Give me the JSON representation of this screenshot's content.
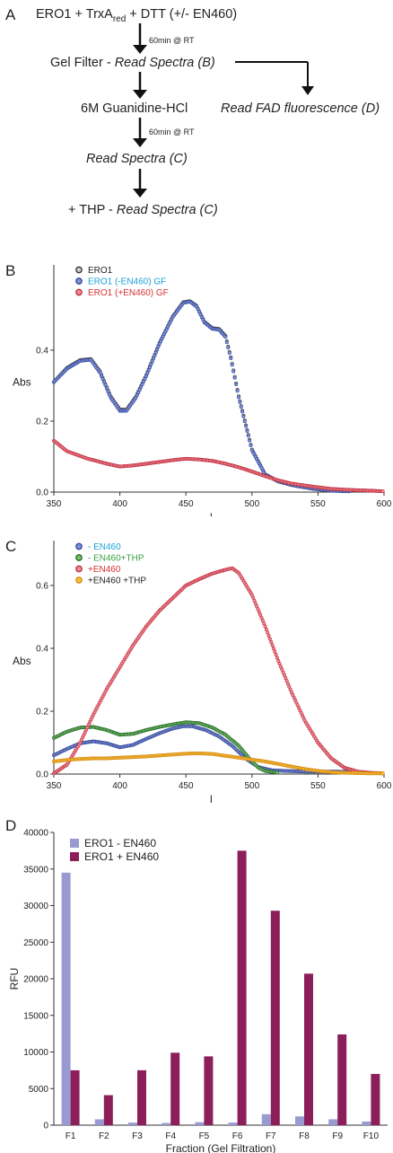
{
  "scheme": {
    "panel_label": "A",
    "step1": {
      "pre": "ERO1 + TrxA",
      "subscript": "red",
      "post": " + DTT (+/- EN460)"
    },
    "incubation1": "60min @ RT",
    "step2": {
      "plain": "Gel Filter - ",
      "italic": "Read Spectra (B)"
    },
    "branch": "Read FAD fluorescence (D)",
    "step3": "6M Guanidine-HCl",
    "incubation2": "60min @ RT",
    "step4": "Read Spectra (C)",
    "step5": {
      "plain": "+ THP - ",
      "italic": "Read Spectra (C)"
    }
  },
  "chart_data": [
    {
      "type": "scatter",
      "panel_label": "B",
      "xlabel": "l",
      "ylabel": "Abs",
      "xlim": [
        350,
        600
      ],
      "ylim": [
        0,
        0.62
      ],
      "xticks": [
        "350",
        "400",
        "450",
        "500",
        "550",
        "600"
      ],
      "yticks": [
        "0.0",
        "0.2",
        "0.4"
      ],
      "ytick_values": [
        0,
        0.2,
        0.4
      ],
      "legend_position": "top-left",
      "series": [
        {
          "name": "ERO1",
          "color": "#333333",
          "label_color": "#222222",
          "fill": "#cccccc",
          "x": [
            350,
            360,
            370,
            378,
            385,
            393,
            400,
            405,
            412,
            420,
            430,
            440,
            448,
            453,
            458,
            464,
            470,
            475,
            480,
            484,
            490,
            500,
            510,
            520,
            530,
            545,
            560,
            575
          ],
          "y": [
            0.31,
            0.35,
            0.372,
            0.375,
            0.34,
            0.27,
            0.233,
            0.232,
            0.268,
            0.33,
            0.42,
            0.495,
            0.535,
            0.538,
            0.525,
            0.48,
            0.462,
            0.46,
            0.44,
            0.38,
            0.27,
            0.12,
            0.05,
            0.03,
            0.02,
            0.01,
            0.004,
            0.002
          ]
        },
        {
          "name": "ERO1 (-EN460) GF",
          "color": "#334499",
          "label_color": "#1aa0d8",
          "fill": "#7f95d6",
          "x": [
            350,
            360,
            370,
            378,
            385,
            393,
            400,
            405,
            412,
            420,
            430,
            440,
            448,
            453,
            458,
            464,
            470,
            475,
            480,
            484,
            490,
            500,
            510,
            520,
            530,
            545,
            560,
            575
          ],
          "y": [
            0.31,
            0.348,
            0.37,
            0.373,
            0.336,
            0.266,
            0.229,
            0.229,
            0.265,
            0.327,
            0.418,
            0.493,
            0.533,
            0.537,
            0.523,
            0.478,
            0.46,
            0.458,
            0.437,
            0.377,
            0.267,
            0.118,
            0.049,
            0.03,
            0.02,
            0.01,
            0.004,
            0.002
          ]
        },
        {
          "name": "ERO1 (+EN460) GF",
          "color": "#c02a3a",
          "label_color": "#d83030",
          "fill": "#ee8e9a",
          "x": [
            350,
            360,
            375,
            390,
            400,
            410,
            420,
            430,
            440,
            450,
            460,
            470,
            480,
            490,
            500,
            510,
            520,
            530,
            545,
            560,
            575,
            590,
            600
          ],
          "y": [
            0.145,
            0.115,
            0.095,
            0.08,
            0.072,
            0.075,
            0.08,
            0.085,
            0.09,
            0.094,
            0.092,
            0.088,
            0.08,
            0.07,
            0.058,
            0.045,
            0.033,
            0.024,
            0.016,
            0.009,
            0.006,
            0.004,
            0.002
          ]
        }
      ]
    },
    {
      "type": "scatter",
      "panel_label": "C",
      "xlabel": "l",
      "ylabel": "Abs",
      "xlim": [
        350,
        600
      ],
      "ylim": [
        0,
        0.72
      ],
      "xticks": [
        "350",
        "400",
        "450",
        "500",
        "550",
        "600"
      ],
      "yticks": [
        "0.0",
        "0.2",
        "0.4",
        "0.6"
      ],
      "ytick_values": [
        0,
        0.2,
        0.4,
        0.6
      ],
      "legend_position": "top-left",
      "series": [
        {
          "name": "- EN460",
          "color": "#334499",
          "label_color": "#1aa0d8",
          "fill": "#7f95d6",
          "x": [
            350,
            360,
            370,
            380,
            390,
            400,
            410,
            420,
            430,
            440,
            448,
            455,
            465,
            475,
            485,
            495,
            505,
            515,
            525,
            540,
            560,
            580
          ],
          "y": [
            0.06,
            0.08,
            0.098,
            0.104,
            0.098,
            0.085,
            0.093,
            0.112,
            0.13,
            0.145,
            0.152,
            0.152,
            0.14,
            0.12,
            0.09,
            0.05,
            0.022,
            0.012,
            0.01,
            0.008,
            0.008,
            0.007
          ]
        },
        {
          "name": "- EN460+THP",
          "color": "#1f6a2a",
          "label_color": "#3aa040",
          "fill": "#7fbf6a",
          "x": [
            350,
            360,
            370,
            380,
            390,
            400,
            410,
            420,
            430,
            440,
            450,
            460,
            470,
            480,
            490,
            500,
            505,
            510,
            520
          ],
          "y": [
            0.115,
            0.135,
            0.148,
            0.15,
            0.14,
            0.125,
            0.128,
            0.14,
            0.15,
            0.158,
            0.165,
            0.162,
            0.148,
            0.125,
            0.09,
            0.04,
            0.02,
            0.01,
            0.004
          ]
        },
        {
          "name": "+EN460",
          "color": "#c02a3a",
          "label_color": "#d83030",
          "fill": "#ee8e9a",
          "x": [
            350,
            360,
            370,
            380,
            390,
            400,
            410,
            420,
            430,
            440,
            450,
            460,
            470,
            480,
            485,
            490,
            500,
            510,
            520,
            530,
            540,
            550,
            560,
            570,
            580,
            590,
            600
          ],
          "y": [
            0.002,
            0.03,
            0.1,
            0.19,
            0.27,
            0.34,
            0.41,
            0.47,
            0.52,
            0.56,
            0.6,
            0.62,
            0.638,
            0.65,
            0.655,
            0.64,
            0.57,
            0.47,
            0.36,
            0.26,
            0.17,
            0.1,
            0.05,
            0.02,
            0.008,
            0.004,
            0.002
          ]
        },
        {
          "name": "+EN460 +THP",
          "color": "#d88a10",
          "label_color": "#222222",
          "fill": "#f5c040",
          "x": [
            350,
            360,
            370,
            380,
            390,
            400,
            410,
            420,
            430,
            440,
            450,
            460,
            470,
            480,
            490,
            500,
            510,
            520,
            530,
            540,
            550,
            560,
            570,
            580,
            590,
            600
          ],
          "y": [
            0.04,
            0.045,
            0.048,
            0.05,
            0.05,
            0.052,
            0.054,
            0.056,
            0.059,
            0.062,
            0.065,
            0.066,
            0.064,
            0.058,
            0.052,
            0.046,
            0.04,
            0.032,
            0.024,
            0.016,
            0.01,
            0.006,
            0.004,
            0.003,
            0.002,
            0.002
          ]
        }
      ]
    },
    {
      "type": "bar",
      "panel_label": "D",
      "xlabel": "Fraction (Gel Filtration)",
      "ylabel": "RFU",
      "ylim": [
        0,
        40000
      ],
      "yticks": [
        "0",
        "5000",
        "10000",
        "15000",
        "20000",
        "25000",
        "30000",
        "35000",
        "40000"
      ],
      "ytick_values": [
        0,
        5000,
        10000,
        15000,
        20000,
        25000,
        30000,
        35000,
        40000
      ],
      "categories": [
        "F1",
        "F2",
        "F3",
        "F4",
        "F5",
        "F6",
        "F7",
        "F8",
        "F9",
        "F10"
      ],
      "legend_position": "top-left",
      "series": [
        {
          "name": "ERO1 - EN460",
          "color": "#9a9ad2",
          "values": [
            34500,
            800,
            350,
            300,
            400,
            350,
            1500,
            1200,
            800,
            500
          ]
        },
        {
          "name": "ERO1 + EN460",
          "color": "#8c1f5a",
          "values": [
            7500,
            4100,
            7500,
            9900,
            9400,
            37500,
            29300,
            20700,
            12400,
            7000
          ]
        }
      ]
    }
  ]
}
